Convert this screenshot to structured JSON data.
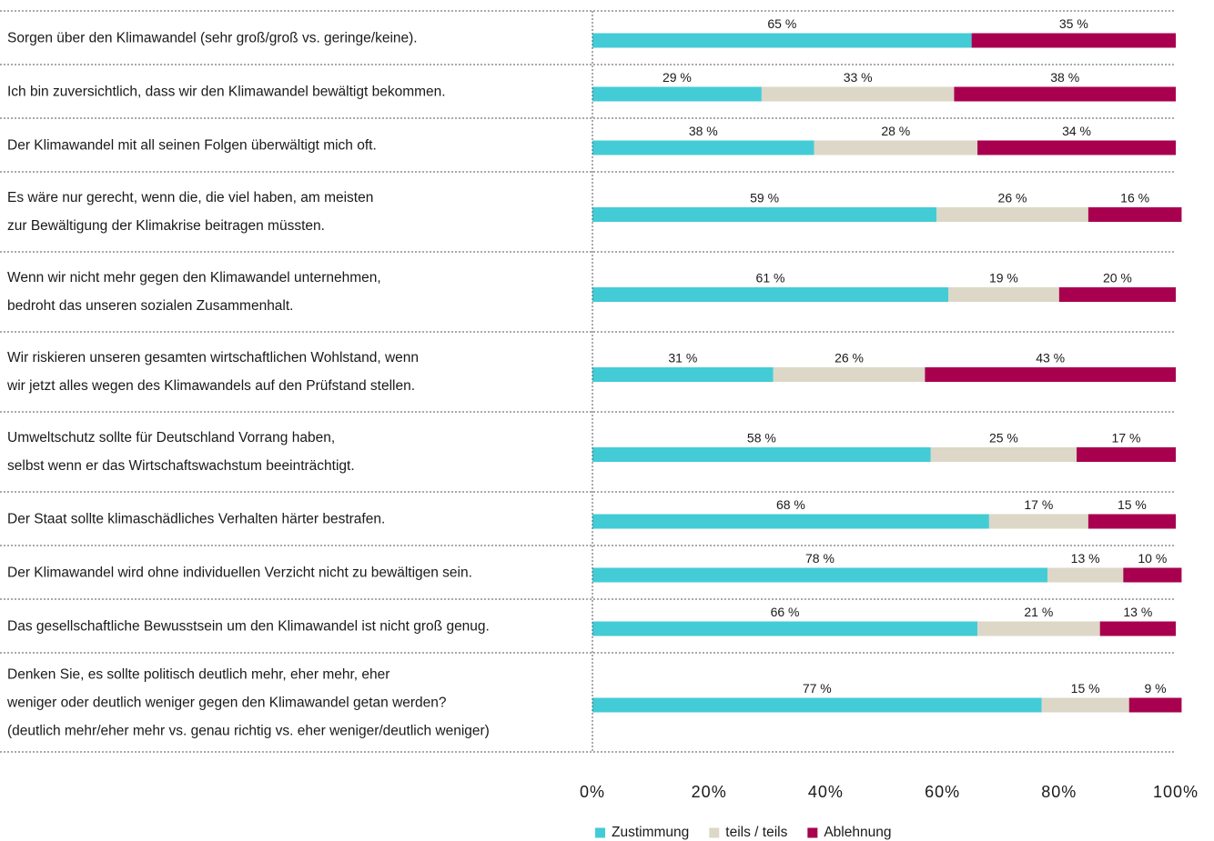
{
  "chart_data": {
    "type": "stacked-barh",
    "categories": [
      "Sorgen über den Klimawandel (sehr groß/groß vs. geringe/keine).",
      "Ich bin zuversichtlich, dass wir den Klimawandel bewältigt bekommen.",
      "Der Klimawandel mit all seinen Folgen überwältigt mich oft.",
      "Es wäre nur gerecht, wenn die, die viel haben, am meisten\nzur Bewältigung der Klimakrise beitragen müssten.",
      "Wenn wir nicht mehr gegen den Klimawandel unternehmen,\nbedroht das unseren sozialen Zusammenhalt.",
      "Wir riskieren unseren gesamten wirtschaftlichen Wohlstand, wenn\nwir jetzt alles wegen des Klimawandels auf den Prüfstand stellen.",
      "Umweltschutz sollte für Deutschland Vorrang haben,\nselbst wenn er das Wirtschaftswachstum beeinträchtigt.",
      "Der Staat sollte klimaschädliches Verhalten härter bestrafen.",
      "Der Klimawandel wird ohne individuellen Verzicht nicht zu bewältigen sein.",
      "Das gesellschaftliche Bewusstsein um den Klimawandel ist nicht groß genug.",
      "Denken Sie, es sollte politisch deutlich mehr, eher mehr, eher\nweniger oder deutlich weniger gegen den Klimawandel getan werden?\n(deutlich mehr/eher mehr vs. genau richtig vs. eher weniger/deutlich weniger)"
    ],
    "series": [
      {
        "name": "Zustimmung",
        "color": "#43ccd6",
        "values": [
          65,
          29,
          38,
          59,
          61,
          31,
          58,
          68,
          78,
          66,
          77
        ],
        "value_labels": [
          "65 %",
          "29 %",
          "38 %",
          "59 %",
          "61 %",
          "31 %",
          "58 %",
          "68 %",
          "78 %",
          "66 %",
          "77 %"
        ]
      },
      {
        "name": "teils / teils",
        "color": "#ddd7c7",
        "values": [
          null,
          33,
          28,
          26,
          19,
          26,
          25,
          17,
          13,
          21,
          15
        ],
        "value_labels": [
          null,
          "33 %",
          "28 %",
          "26 %",
          "19 %",
          "26 %",
          "25 %",
          "17 %",
          "13 %",
          "21 %",
          "15 %"
        ]
      },
      {
        "name": "Ablehnung",
        "color": "#a8004f",
        "values": [
          35,
          38,
          34,
          16,
          20,
          43,
          17,
          15,
          10,
          13,
          9
        ],
        "value_labels": [
          "35 %",
          "38 %",
          "34 %",
          "16 %",
          "20 %",
          "43 %",
          "17 %",
          "15 %",
          "10 %",
          "13 %",
          "9 %"
        ]
      }
    ],
    "xlim": [
      0,
      100
    ],
    "xticks": [
      {
        "value": 0,
        "label": "0%"
      },
      {
        "value": 20,
        "label": "20%"
      },
      {
        "value": 40,
        "label": "40%"
      },
      {
        "value": 60,
        "label": "60%"
      },
      {
        "value": 80,
        "label": "80%"
      },
      {
        "value": 100,
        "label": "100%"
      }
    ],
    "legend": "bottom"
  }
}
